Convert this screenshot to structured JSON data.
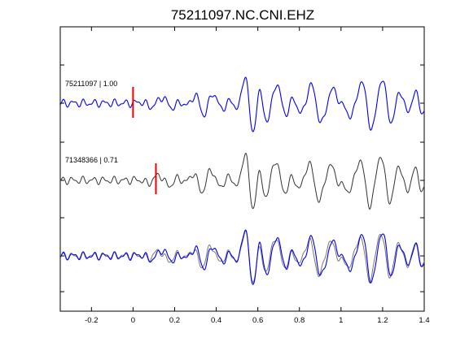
{
  "chart_data": {
    "type": "line",
    "title": "75211097.NC.CNI.EHZ",
    "xlabel": "",
    "ylabel": "",
    "xlim": [
      -0.35,
      1.4
    ],
    "x_ticks": [
      -0.2,
      0,
      0.2,
      0.4,
      0.6,
      0.8,
      1,
      1.2,
      1.4
    ],
    "x_tick_labels": [
      "-0.2",
      "0",
      "0.2",
      "0.4",
      "0.6",
      "0.8",
      "1",
      "1.2",
      "1.4"
    ],
    "grid": false,
    "traces": [
      {
        "label": "75211097 | 1.00",
        "color": "#0000ee",
        "pick_time": 0.0,
        "pick_color": "#ee0000"
      },
      {
        "label": "71348366 | 0.71",
        "color": "#333333",
        "pick_time": 0.11,
        "pick_color": "#ee0000"
      },
      {
        "label": "",
        "color": "#0000ee",
        "overlay_color": "#777777"
      }
    ]
  }
}
